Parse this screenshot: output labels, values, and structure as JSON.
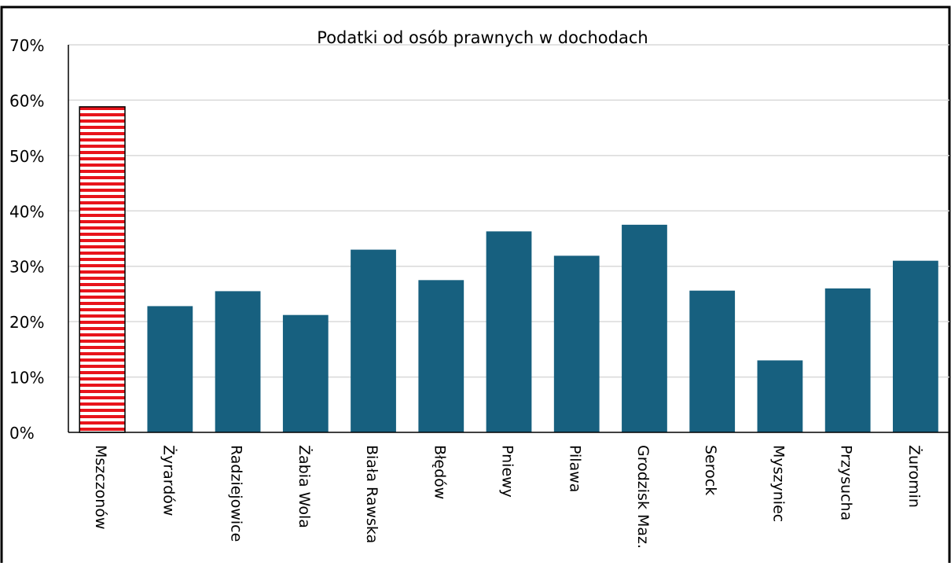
{
  "chart_data": {
    "type": "bar",
    "title": "Podatki od osób  prawnych w dochodach",
    "xlabel": "",
    "ylabel": "",
    "ylim": [
      0,
      70
    ],
    "yticks": [
      "0%",
      "10%",
      "20%",
      "30%",
      "40%",
      "50%",
      "60%",
      "70%"
    ],
    "grid": true,
    "legend": "none",
    "categories": [
      "Mszczonów",
      "Żyrardów",
      "Radziejowice",
      "Żabia Wola",
      "Biała Rawska",
      "Błędów",
      "Pniewy",
      "Pilawa",
      "Grodzisk Maz.",
      "Serock",
      "Myszyniec",
      "Przysucha",
      "Żuromin"
    ],
    "values": [
      58.8,
      22.8,
      25.5,
      21.2,
      33.0,
      27.5,
      36.3,
      31.9,
      37.5,
      25.6,
      13.0,
      26.0,
      31.0
    ],
    "highlight_index": 0,
    "colors": {
      "bar": "#17607f",
      "highlight_stripe": "#e8141b",
      "highlight_bg": "#ffffff",
      "grid": "#d9d9d9",
      "frame": "#000000"
    }
  }
}
